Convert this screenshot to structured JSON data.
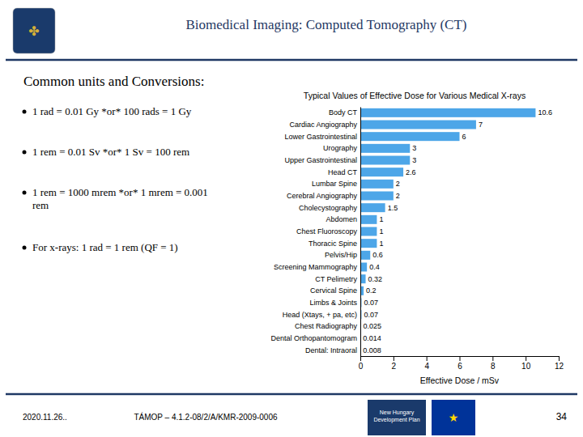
{
  "title": "Biomedical Imaging: Computed Tomography (CT)",
  "subtitle": "Common units and Conversions:",
  "bullet_points": [
    "1 rad = 0.01 Gy  *or*  100 rads = 1 Gy",
    "1 rem = 0.01 Sv  *or*  1 Sv = 100 rem",
    "1 rem = 1000 mrem *or* 1 mrem = 0.001\nrem",
    "For x-rays:  1 rad = 1 rem (QF = 1)"
  ],
  "footer_left": "2020.11.26..",
  "footer_center": "TÁMOP – 4.1.2-08/2/A/KMR-2009-0006",
  "page_number": "34",
  "annotations": [
    "✤",
    "New Hungary\nDevelopment Plan",
    "★"
  ],
  "chart_data": {
    "type": "bar",
    "orientation": "horizontal",
    "title": "Typical Values of Effective Dose for Various Medical X-rays",
    "xlabel": "Effective Dose / mSv",
    "categories": [
      "Body CT",
      "Cardiac Angiography",
      "Lower Gastrointestinal",
      "Urography",
      "Upper Gastrointestinal",
      "Head CT",
      "Lumbar Spine",
      "Cerebral Angiography",
      "Cholecystography",
      "Abdomen",
      "Chest Fluoroscopy",
      "Thoracic Spine",
      "Pelvis/Hip",
      "Screening Mammography",
      "CT Pelimetry",
      "Cervical Spine",
      "Limbs & Joints",
      "Head (Xtays, + pa, etc)",
      "Chest Radiography",
      "Dental Orthopantomogram",
      "Dental: Intraoral"
    ],
    "values": [
      10.6,
      7,
      6,
      3,
      3,
      2.6,
      2,
      2,
      1.5,
      1,
      1,
      1,
      0.6,
      0.4,
      0.32,
      0.2,
      0.07,
      0.07,
      0.025,
      0.014,
      0.008
    ],
    "color": "#4da6e8",
    "xlim": [
      0,
      12
    ],
    "xticks": [
      0,
      2,
      4,
      6,
      8,
      10,
      12
    ],
    "data_labels": true
  }
}
